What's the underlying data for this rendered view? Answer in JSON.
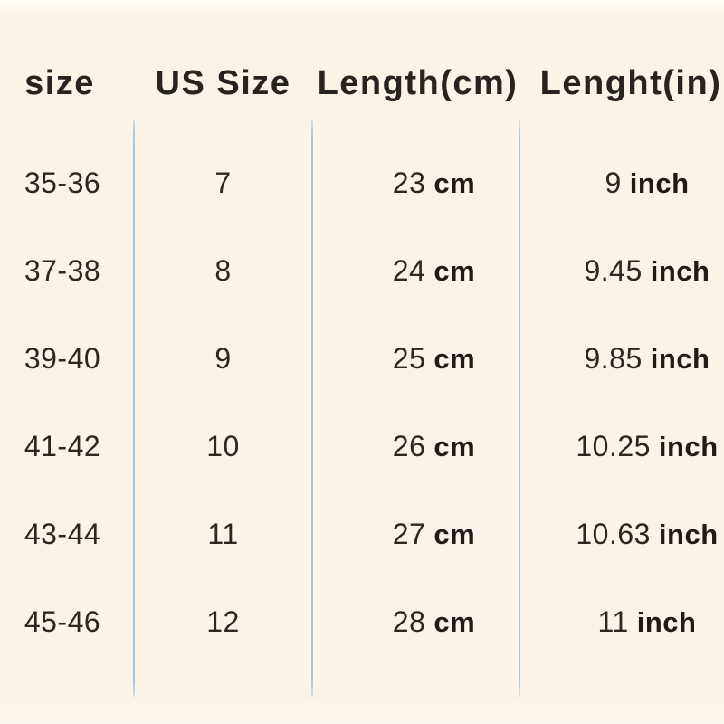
{
  "page": {
    "background_color": "#fcf3e8",
    "divider_color": "#a6c6e2",
    "header_text_color": "#272320",
    "body_text_color": "#2b2723"
  },
  "table": {
    "headers": [
      {
        "label": "size"
      },
      {
        "label": "US Size"
      },
      {
        "label": "Length(cm)"
      },
      {
        "label": "Lenght(in)"
      }
    ],
    "rows": [
      {
        "size": "35-36",
        "us_size": "7",
        "length_cm": "23",
        "cm_unit": "cm",
        "length_in": "9",
        "in_unit": "inch"
      },
      {
        "size": "37-38",
        "us_size": "8",
        "length_cm": "24",
        "cm_unit": "cm",
        "length_in": "9.45",
        "in_unit": "inch"
      },
      {
        "size": "39-40",
        "us_size": "9",
        "length_cm": "25",
        "cm_unit": "cm",
        "length_in": "9.85",
        "in_unit": "inch"
      },
      {
        "size": "41-42",
        "us_size": "10",
        "length_cm": "26",
        "cm_unit": "cm",
        "length_in": "10.25",
        "in_unit": "inch"
      },
      {
        "size": "43-44",
        "us_size": "11",
        "length_cm": "27",
        "cm_unit": "cm",
        "length_in": "10.63",
        "in_unit": "inch"
      },
      {
        "size": "45-46",
        "us_size": "12",
        "length_cm": "28",
        "cm_unit": "cm",
        "length_in": "11",
        "in_unit": "inch"
      }
    ]
  },
  "chart_data": {
    "type": "table",
    "columns": [
      "size",
      "US Size",
      "Length(cm)",
      "Lenght(in)"
    ],
    "rows": [
      [
        "35-36",
        "7",
        "23 cm",
        "9 inch"
      ],
      [
        "37-38",
        "8",
        "24 cm",
        "9.45 inch"
      ],
      [
        "39-40",
        "9",
        "25 cm",
        "9.85 inch"
      ],
      [
        "41-42",
        "10",
        "26 cm",
        "10.25 inch"
      ],
      [
        "43-44",
        "11",
        "27 cm",
        "10.63 inch"
      ],
      [
        "45-46",
        "12",
        "28 cm",
        "11 inch"
      ]
    ],
    "eu_sizes": [
      "35-36",
      "37-38",
      "39-40",
      "41-42",
      "43-44",
      "45-46"
    ],
    "us_sizes": [
      7,
      8,
      9,
      10,
      11,
      12
    ],
    "length_cm": [
      23,
      24,
      25,
      26,
      27,
      28
    ],
    "length_in": [
      9,
      9.45,
      9.85,
      10.25,
      10.63,
      11
    ],
    "layout": {
      "grid": "three light-blue vertical column dividers, no horizontal rules",
      "background": "cream"
    }
  }
}
